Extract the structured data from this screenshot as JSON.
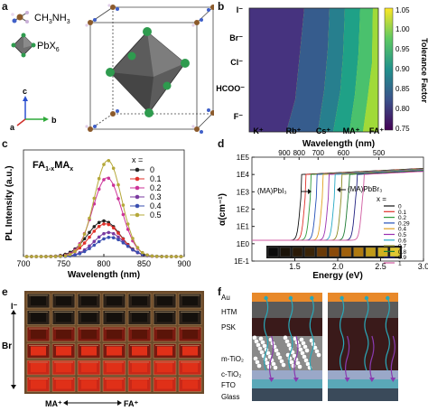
{
  "panel_labels": [
    "a",
    "b",
    "c",
    "d",
    "e",
    "f"
  ],
  "panel_a": {
    "legend": [
      {
        "label_main": "CH",
        "sub1": "3",
        "mid": "NH",
        "sub2": "3",
        "icon": "methylammonium-molecule-icon"
      },
      {
        "label_main": "PbX",
        "sub1": "6",
        "mid": "",
        "sub2": "",
        "icon": "octahedron-icon"
      }
    ],
    "axes": [
      "c",
      "a",
      "b"
    ]
  },
  "panel_b": {
    "type": "heatmap",
    "x_categories": [
      "K⁺",
      "Rb⁺",
      "Cs⁺",
      "MA⁺",
      "FA⁺"
    ],
    "y_categories": [
      "I⁻",
      "Br⁻",
      "Cl⁻",
      "HCOO⁻",
      "F⁻"
    ],
    "colorbar": {
      "label": "Tolerance Factor",
      "ticks": [
        "1.05",
        "1.00",
        "0.95",
        "0.90",
        "0.85",
        "0.80",
        "0.75"
      ]
    },
    "colors": [
      "#440154",
      "#3b528b",
      "#21918c",
      "#5ec962",
      "#fde725"
    ]
  },
  "chart_data": [
    {
      "type": "line",
      "panel": "c",
      "title": "FA1-xMAx",
      "xlabel": "Wavelength (nm)",
      "ylabel": "PL Intensity (a.u.)",
      "xlim": [
        700,
        900
      ],
      "x_ticks": [
        "700",
        "750",
        "800",
        "850",
        "900"
      ],
      "legend_title": "x =",
      "series": [
        {
          "name": "0",
          "peak": 800,
          "amp": 0.37,
          "fwhm": 48,
          "color": "#222222"
        },
        {
          "name": "0.1",
          "peak": 802,
          "amp": 0.34,
          "fwhm": 46,
          "color": "#e0302a"
        },
        {
          "name": "0.2",
          "peak": 804,
          "amp": 0.82,
          "fwhm": 42,
          "color": "#cc3399"
        },
        {
          "name": "0.3",
          "peak": 806,
          "amp": 0.25,
          "fwhm": 44,
          "color": "#7a3aa0"
        },
        {
          "name": "0.4",
          "peak": 808,
          "amp": 0.2,
          "fwhm": 46,
          "color": "#3a4fb0"
        },
        {
          "name": "0.5",
          "peak": 805,
          "amp": 1.0,
          "fwhm": 40,
          "color": "#b5a83a"
        }
      ]
    },
    {
      "type": "line",
      "panel": "d",
      "xlabel": "Energy (eV)",
      "ylabel": "α(cm⁻¹)",
      "top_xlabel": "Wavelength (nm)",
      "xlim": [
        1.0,
        3.0
      ],
      "x_ticks": [
        "1.5",
        "2.0",
        "2.5",
        "3.0"
      ],
      "top_ticks": [
        "900",
        "800",
        "700",
        "600",
        "500"
      ],
      "y_ticks": [
        "1E5",
        "1E4",
        "1E3",
        "1E2",
        "1E1",
        "1E0",
        "1E-1"
      ],
      "annotations": [
        "(MA)PbI₃",
        "(MA)PbBr₃"
      ],
      "legend_title": "x =",
      "series": [
        {
          "name": "0",
          "edge": 1.58,
          "color": "#111111"
        },
        {
          "name": "0.1",
          "edge": 1.63,
          "color": "#e0302a"
        },
        {
          "name": "0.2",
          "edge": 1.69,
          "color": "#2f9a3a"
        },
        {
          "name": "0.29",
          "edge": 1.76,
          "color": "#2450b8"
        },
        {
          "name": "0.4",
          "edge": 1.83,
          "color": "#e0a020"
        },
        {
          "name": "0.5",
          "edge": 1.9,
          "color": "#9a30b0"
        },
        {
          "name": "0.6",
          "edge": 1.97,
          "color": "#27a9c5"
        },
        {
          "name": "0.7",
          "edge": 2.05,
          "color": "#8a8a20"
        },
        {
          "name": "0.8",
          "edge": 2.13,
          "color": "#1a7a30"
        },
        {
          "name": "0.9",
          "edge": 2.22,
          "color": "#202080"
        },
        {
          "name": "1",
          "edge": 2.3,
          "color": "#d05aa0"
        }
      ]
    }
  ],
  "panel_e": {
    "left_labels": [
      "I⁻",
      "Br"
    ],
    "bottom_left": "MA⁺",
    "bottom_right": "FA⁺"
  },
  "panel_f": {
    "layers": [
      "Au",
      "HTM",
      "PSK",
      "m-TiO₂",
      "c-TiO₂",
      "FTO",
      "Glass"
    ]
  }
}
